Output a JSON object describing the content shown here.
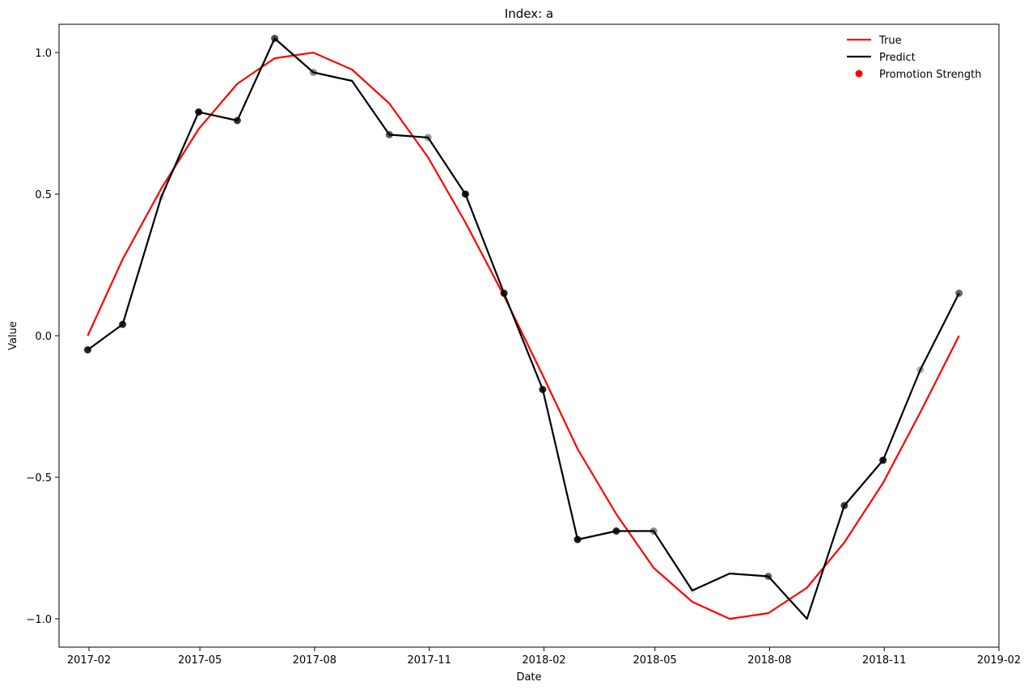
{
  "chart_data": {
    "type": "line",
    "title": "Index: a",
    "xlabel": "Date",
    "ylabel": "Value",
    "x_tick_labels": [
      "2017-02",
      "2017-05",
      "2017-08",
      "2017-11",
      "2018-02",
      "2018-05",
      "2018-08",
      "2018-11",
      "2019-02"
    ],
    "x_tick_dates": [
      "2017-02-01",
      "2017-05-01",
      "2017-08-01",
      "2017-11-01",
      "2018-02-01",
      "2018-05-01",
      "2018-08-01",
      "2018-11-01",
      "2019-02-01"
    ],
    "y_ticks": [
      -1.0,
      -0.5,
      0.0,
      0.5,
      1.0
    ],
    "y_tick_labels": [
      "−1.0",
      "−0.5",
      "0.0",
      "0.5",
      "1.0"
    ],
    "ylim": [
      -1.1,
      1.1
    ],
    "xlim": [
      "2017-01-08",
      "2019-02-01"
    ],
    "legend_position": "top-right",
    "legend": [
      {
        "label": "True",
        "kind": "line",
        "color": "#ff0000"
      },
      {
        "label": "Predict",
        "kind": "line",
        "color": "#000000"
      },
      {
        "label": "Promotion Strength",
        "kind": "marker",
        "color": "#ff0000"
      }
    ],
    "x": [
      "2017-01-31",
      "2017-02-28",
      "2017-03-31",
      "2017-04-30",
      "2017-05-31",
      "2017-06-30",
      "2017-07-31",
      "2017-08-31",
      "2017-09-30",
      "2017-10-31",
      "2017-11-30",
      "2017-12-31",
      "2018-01-31",
      "2018-02-28",
      "2018-03-31",
      "2018-04-30",
      "2018-05-31",
      "2018-06-30",
      "2018-07-31",
      "2018-08-31",
      "2018-09-30",
      "2018-10-31",
      "2018-11-30",
      "2018-12-31"
    ],
    "series": [
      {
        "name": "True",
        "color": "#ff0000",
        "values": [
          0.0,
          0.27,
          0.52,
          0.73,
          0.89,
          0.98,
          1.0,
          0.94,
          0.82,
          0.63,
          0.4,
          0.14,
          -0.14,
          -0.4,
          -0.63,
          -0.82,
          -0.94,
          -1.0,
          -0.98,
          -0.89,
          -0.73,
          -0.52,
          -0.27,
          0.0
        ]
      },
      {
        "name": "Predict",
        "color": "#000000",
        "values": [
          -0.05,
          0.04,
          0.49,
          0.79,
          0.76,
          1.05,
          0.93,
          0.9,
          0.71,
          0.7,
          0.5,
          0.15,
          -0.19,
          -0.72,
          -0.69,
          -0.69,
          -0.9,
          -0.84,
          -0.85,
          -1.0,
          -0.6,
          -0.44,
          -0.12,
          0.15
        ],
        "promotion_strength": [
          0.85,
          0.85,
          0.15,
          0.9,
          0.8,
          0.7,
          0.45,
          0.0,
          0.65,
          0.4,
          0.9,
          0.85,
          0.85,
          0.9,
          0.85,
          0.45,
          0.1,
          0.0,
          0.6,
          0.0,
          0.75,
          0.9,
          0.3,
          0.6
        ]
      }
    ]
  }
}
